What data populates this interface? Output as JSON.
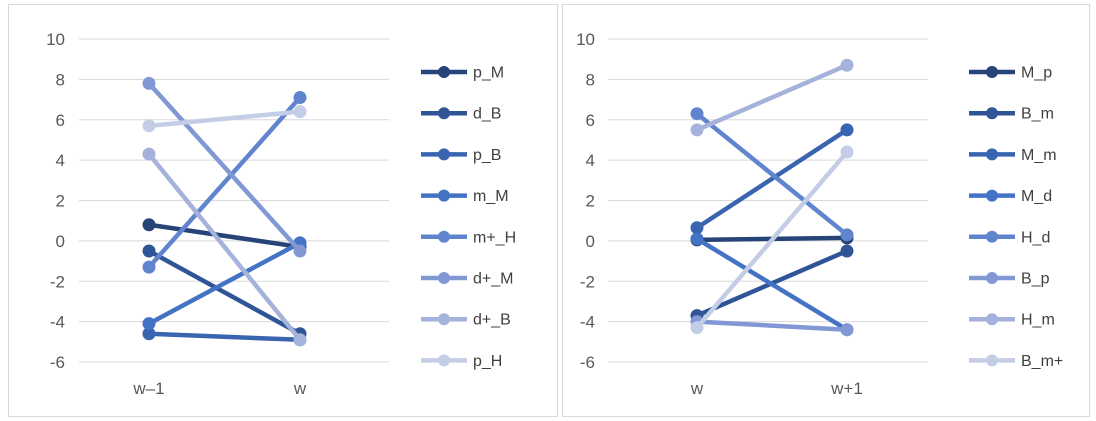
{
  "chart_data": [
    {
      "type": "line",
      "categories": [
        "w–1",
        "w"
      ],
      "ylim": [
        -6,
        10
      ],
      "yticks": [
        10,
        8,
        6,
        4,
        2,
        0,
        -2,
        -4,
        -6
      ],
      "grid": true,
      "legend_position": "right",
      "series": [
        {
          "name": "p_M",
          "values": [
            0.8,
            -0.3
          ],
          "color": "#264478"
        },
        {
          "name": "d_B",
          "values": [
            -0.5,
            -4.6
          ],
          "color": "#2f5597"
        },
        {
          "name": "p_B",
          "values": [
            -4.6,
            -4.9
          ],
          "color": "#3864b0"
        },
        {
          "name": "m_M",
          "values": [
            -4.1,
            -0.1
          ],
          "color": "#4472c4"
        },
        {
          "name": "m+_H",
          "values": [
            -1.3,
            7.1
          ],
          "color": "#6184ce"
        },
        {
          "name": "d+_M",
          "values": [
            7.8,
            -0.5
          ],
          "color": "#8198d4"
        },
        {
          "name": "d+_B",
          "values": [
            4.3,
            -4.9
          ],
          "color": "#a5b3dc"
        },
        {
          "name": "p_H",
          "values": [
            5.7,
            6.4
          ],
          "color": "#c4cde6"
        }
      ]
    },
    {
      "type": "line",
      "categories": [
        "w",
        "w+1"
      ],
      "ylim": [
        -6,
        10
      ],
      "yticks": [
        10,
        8,
        6,
        4,
        2,
        0,
        -2,
        -4,
        -6
      ],
      "grid": true,
      "legend_position": "right",
      "series": [
        {
          "name": "M_p",
          "values": [
            0.05,
            0.15
          ],
          "color": "#264478"
        },
        {
          "name": "B_m",
          "values": [
            -3.7,
            -0.5
          ],
          "color": "#2f5597"
        },
        {
          "name": "M_m",
          "values": [
            0.65,
            5.5
          ],
          "color": "#3864b0"
        },
        {
          "name": "M_d",
          "values": [
            0.1,
            -4.4
          ],
          "color": "#4472c4"
        },
        {
          "name": "H_d",
          "values": [
            6.3,
            0.3
          ],
          "color": "#6184ce"
        },
        {
          "name": "B_p",
          "values": [
            -4.0,
            -4.4
          ],
          "color": "#8198d4"
        },
        {
          "name": "H_m",
          "values": [
            5.5,
            8.7
          ],
          "color": "#a5b3dc"
        },
        {
          "name": "B_m+",
          "values": [
            -4.3,
            4.4
          ],
          "color": "#c4cde6"
        }
      ]
    }
  ]
}
